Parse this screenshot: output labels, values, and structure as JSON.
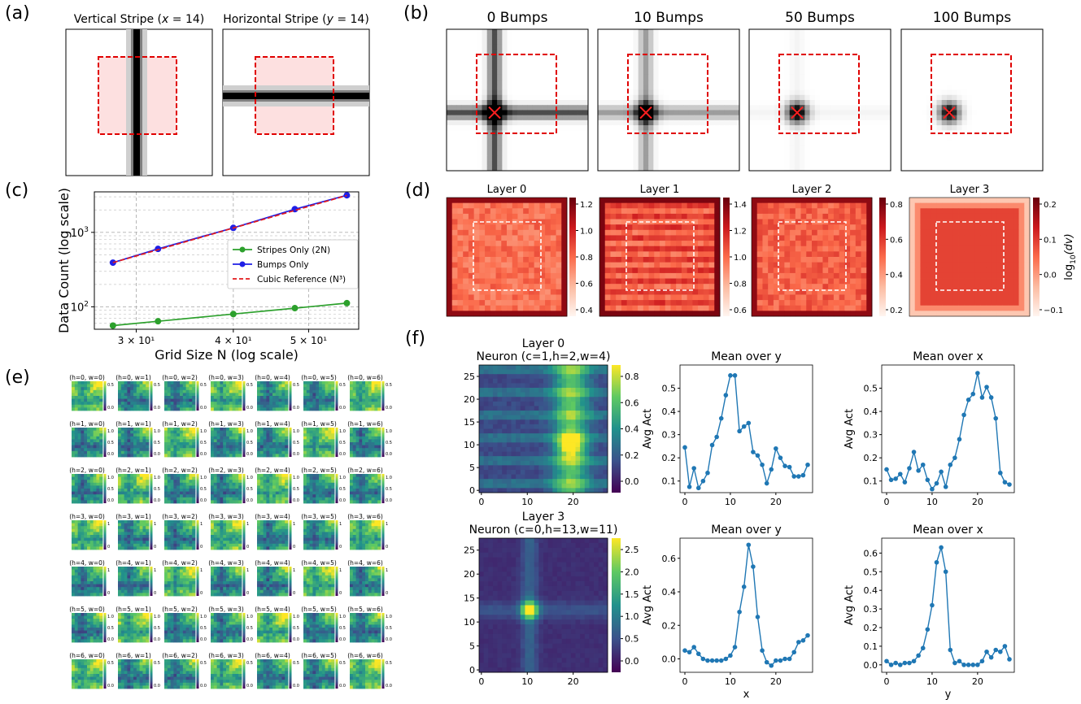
{
  "panel_labels": [
    "(a)",
    "(b)",
    "(c)",
    "(d)",
    "(e)",
    "(f)"
  ],
  "panel_a": {
    "titles": [
      "Vertical Stripe ($x = 14$)",
      "Horizontal Stripe ($y = 14$)"
    ],
    "title_prefix": [
      "Vertical Stripe (",
      "Horizontal Stripe ("
    ],
    "title_var": [
      "x",
      "y"
    ],
    "title_value": [
      " = 14)",
      " = 14)"
    ]
  },
  "panel_b": {
    "titles": [
      "0 Bumps",
      "10 Bumps",
      "50 Bumps",
      "100 Bumps"
    ]
  },
  "panel_d": {
    "titles": [
      "Layer 0",
      "Layer 1",
      "Layer 2",
      "Layer 3"
    ],
    "colorbar_ticks": [
      [
        "1.2",
        "1.0",
        "0.8",
        "0.6",
        "0.4"
      ],
      [
        "1.4",
        "1.2",
        "1.0",
        "0.8",
        "0.6"
      ],
      [
        "0.8",
        "0.6",
        "0.4",
        "0.2"
      ],
      [
        "0.2",
        "0.1",
        "0.0",
        "−0.1"
      ]
    ],
    "colorbar_label": "log10(dv)",
    "colorbar_label_main": "log",
    "colorbar_label_sub": "10",
    "colorbar_label_arg": "(dv)",
    "colors": {
      "low": "#fff5f0",
      "high": "#67000d",
      "box": "#ffffff"
    }
  },
  "panel_e": {
    "rows": 7,
    "cols": 7,
    "tile_title_template": "(h={h}, w={w})",
    "colorbar_ticks": [
      [
        "0.5",
        "0.0"
      ],
      [
        "1.0",
        "0.5",
        "0.0"
      ],
      [
        "1.0",
        "0.5",
        "0.0"
      ],
      [
        "1",
        "0"
      ],
      [
        "1",
        "0"
      ],
      [
        "1.0",
        "0.5",
        "0.0"
      ],
      [
        "0.5",
        "0.0"
      ]
    ]
  },
  "panel_f": {
    "rows": [
      {
        "heatmap_title": [
          "Layer 0",
          "Neuron (c=1,h=2,w=4)"
        ],
        "heatmap_yticks": [
          "25",
          "20",
          "15",
          "10",
          "5",
          "0"
        ],
        "heatmap_xticks": [
          "0",
          "10",
          "20"
        ],
        "colorbar_ticks": [
          "0.8",
          "0.6",
          "0.4",
          "0.2",
          "0.0"
        ],
        "mean_over_y": {
          "title": "Mean over y",
          "ylabel": "Avg Act",
          "xlabel": "",
          "x": [
            0,
            1,
            2,
            3,
            4,
            5,
            6,
            7,
            8,
            9,
            10,
            11,
            12,
            13,
            14,
            15,
            16,
            17,
            18,
            19,
            20,
            21,
            22,
            23,
            24,
            25,
            26,
            27
          ],
          "values": [
            0.245,
            0.075,
            0.155,
            0.07,
            0.1,
            0.135,
            0.255,
            0.29,
            0.37,
            0.47,
            0.555,
            0.555,
            0.315,
            0.335,
            0.35,
            0.225,
            0.21,
            0.17,
            0.09,
            0.15,
            0.24,
            0.2,
            0.165,
            0.16,
            0.12,
            0.12,
            0.125,
            0.17
          ],
          "ylim": [
            0.05,
            0.6
          ],
          "yticks": [
            "0.5",
            "0.4",
            "0.3",
            "0.2",
            "0.1"
          ],
          "xticks": [
            "0",
            "10",
            "20"
          ]
        },
        "mean_over_x": {
          "title": "Mean over x",
          "ylabel": "Avg Act",
          "xlabel": "",
          "x": [
            0,
            1,
            2,
            3,
            4,
            5,
            6,
            7,
            8,
            9,
            10,
            11,
            12,
            13,
            14,
            15,
            16,
            17,
            18,
            19,
            20,
            21,
            22,
            23,
            24,
            25,
            26,
            27
          ],
          "values": [
            0.15,
            0.105,
            0.11,
            0.13,
            0.095,
            0.155,
            0.225,
            0.145,
            0.17,
            0.105,
            0.065,
            0.09,
            0.14,
            0.075,
            0.17,
            0.2,
            0.28,
            0.385,
            0.45,
            0.475,
            0.565,
            0.46,
            0.505,
            0.46,
            0.37,
            0.135,
            0.095,
            0.085
          ],
          "ylim": [
            0.05,
            0.6
          ],
          "yticks": [
            "0.5",
            "0.4",
            "0.3",
            "0.2",
            "0.1"
          ],
          "xticks": [
            "0",
            "10",
            "20"
          ]
        }
      },
      {
        "heatmap_title": [
          "Layer 3",
          "Neuron (c=0,h=13,w=11)"
        ],
        "heatmap_yticks": [
          "25",
          "20",
          "15",
          "10",
          "5",
          "0"
        ],
        "heatmap_xticks": [
          "0",
          "10",
          "20"
        ],
        "colorbar_ticks": [
          "2.5",
          "2.0",
          "1.5",
          "1.0",
          "0.5",
          "0.0"
        ],
        "mean_over_y": {
          "title": "Mean over y",
          "ylabel": "Avg Act",
          "xlabel": "x",
          "x": [
            0,
            1,
            2,
            3,
            4,
            5,
            6,
            7,
            8,
            9,
            10,
            11,
            12,
            13,
            14,
            15,
            16,
            17,
            18,
            19,
            20,
            21,
            22,
            23,
            24,
            25,
            26,
            27
          ],
          "values": [
            0.05,
            0.04,
            0.07,
            0.03,
            0.0,
            -0.01,
            -0.01,
            -0.01,
            -0.01,
            0.0,
            0.02,
            0.07,
            0.28,
            0.43,
            0.68,
            0.55,
            0.25,
            0.05,
            -0.02,
            -0.04,
            -0.01,
            -0.01,
            0.0,
            0.0,
            0.04,
            0.1,
            0.11,
            0.14
          ],
          "ylim": [
            -0.08,
            0.72
          ],
          "yticks": [
            "0.6",
            "0.4",
            "0.2",
            "0.0"
          ],
          "xticks": [
            "0",
            "10",
            "20"
          ]
        },
        "mean_over_x": {
          "title": "Mean over x",
          "ylabel": "Avg Act",
          "xlabel": "y",
          "x": [
            0,
            1,
            2,
            3,
            4,
            5,
            6,
            7,
            8,
            9,
            10,
            11,
            12,
            13,
            14,
            15,
            16,
            17,
            18,
            19,
            20,
            21,
            22,
            23,
            24,
            25,
            26,
            27
          ],
          "values": [
            0.02,
            0.0,
            0.01,
            0.0,
            0.01,
            0.01,
            0.02,
            0.05,
            0.09,
            0.19,
            0.32,
            0.55,
            0.63,
            0.5,
            0.08,
            0.01,
            0.02,
            0.0,
            0.0,
            0.0,
            0.0,
            0.02,
            0.07,
            0.04,
            0.08,
            0.07,
            0.1,
            0.03
          ],
          "ylim": [
            -0.04,
            0.68
          ],
          "yticks": [
            "0.6",
            "0.5",
            "0.4",
            "0.3",
            "0.2",
            "0.1",
            "0.0"
          ],
          "xticks": [
            "0",
            "10",
            "20"
          ]
        }
      }
    ]
  },
  "chart_data": [
    {
      "type": "line",
      "panel": "(c)",
      "title": "",
      "xlabel": "Grid Size N (log scale)",
      "ylabel": "Data Count (log scale)",
      "xscale": "log",
      "yscale": "log",
      "xlim": [
        26.5,
        58
      ],
      "ylim": [
        50,
        3500
      ],
      "xticks": [
        "3 × 10¹",
        "4 × 10¹",
        "5 × 10¹"
      ],
      "xtick_values": [
        30,
        40,
        50
      ],
      "yticks": [
        "10³",
        "10²"
      ],
      "ytick_values": [
        1000,
        100
      ],
      "legend_position": "center-right",
      "series": [
        {
          "name": "Stripes Only (2N)",
          "color": "#2ca02c",
          "marker": "circle",
          "style": "solid",
          "x": [
            28,
            32,
            40,
            48,
            56
          ],
          "values": [
            56,
            64,
            80,
            96,
            112
          ]
        },
        {
          "name": "Bumps Only",
          "color": "#1f1fe6",
          "marker": "circle",
          "style": "solid",
          "x": [
            28,
            32,
            40,
            48,
            56
          ],
          "values": [
            392,
            600,
            1150,
            2050,
            3150
          ]
        },
        {
          "name": "Cubic Reference (N³)",
          "color": "#e31a1c",
          "marker": "none",
          "style": "dashed",
          "x": [
            28,
            32,
            40,
            48,
            56
          ],
          "values": [
            392,
            585,
            1143,
            1975,
            3136
          ]
        }
      ]
    },
    {
      "type": "line",
      "panel": "(f) Layer 0 mean over y",
      "ref": "panel_f.rows.0.mean_over_y"
    },
    {
      "type": "line",
      "panel": "(f) Layer 0 mean over x",
      "ref": "panel_f.rows.0.mean_over_x"
    },
    {
      "type": "line",
      "panel": "(f) Layer 3 mean over y",
      "ref": "panel_f.rows.1.mean_over_y"
    },
    {
      "type": "line",
      "panel": "(f) Layer 3 mean over x",
      "ref": "panel_f.rows.1.mean_over_x"
    }
  ]
}
